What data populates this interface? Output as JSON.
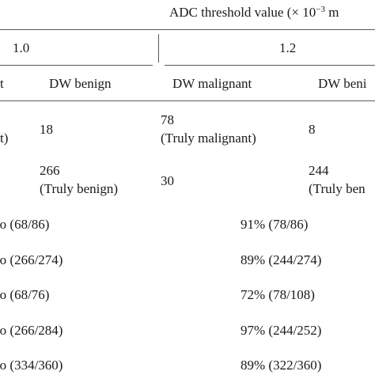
{
  "header": {
    "adc_title_prefix": "ADC threshold value (× 10",
    "adc_title_exp": "−3",
    "adc_title_suffix": " m",
    "group_1": "1.0",
    "group_2": "1.2"
  },
  "columns": {
    "col_a_partial": "t",
    "col_b": "DW benign",
    "col_c": "DW malignant",
    "col_d_partial": "DW beni"
  },
  "rows": {
    "r1": {
      "a_partial": "t)",
      "b": "18",
      "c_line1": "78",
      "c_line2": "(Truly malignant)",
      "d": "8"
    },
    "r2": {
      "b_line1": "266",
      "b_line2": "(Truly benign)",
      "c": "30",
      "d_line1": "244",
      "d_line2": "(Truly ben"
    }
  },
  "stats": [
    {
      "left": "’o (68/86)",
      "right": "91% (78/86)"
    },
    {
      "left": "’o (266/274)",
      "right": "89% (244/274)"
    },
    {
      "left": "’o (68/76)",
      "right": "72% (78/108)"
    },
    {
      "left": "’o (266/284)",
      "right": "97% (244/252)"
    },
    {
      "left": "’o (334/360)",
      "right": "89% (322/360)"
    }
  ]
}
